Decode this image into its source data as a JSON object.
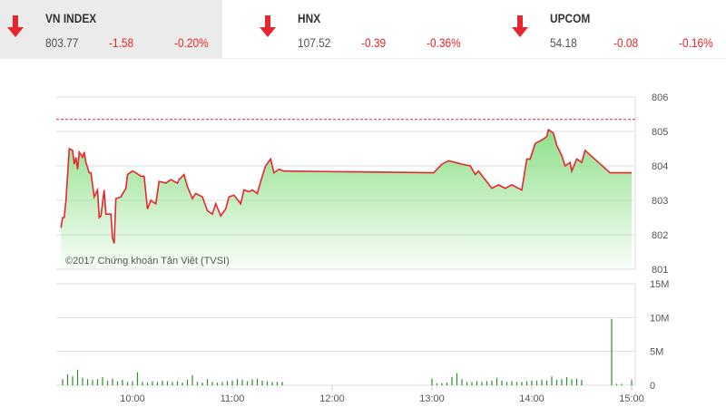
{
  "indices": [
    {
      "name": "VN INDEX",
      "price": "803.77",
      "change": "-1.58",
      "percent": "-0.20%",
      "direction": "down",
      "selected": true
    },
    {
      "name": "HNX",
      "price": "107.52",
      "change": "-0.39",
      "percent": "-0.36%",
      "direction": "down",
      "selected": false
    },
    {
      "name": "UPCOM",
      "price": "54.18",
      "change": "-0.08",
      "percent": "-0.16%",
      "direction": "down",
      "selected": false
    }
  ],
  "colors": {
    "down": "#e8262d",
    "line": "#e8262d",
    "area": "#8fe08a",
    "volume": "#2e8b2e"
  },
  "chart_data": [
    {
      "type": "area",
      "watermark": "©2017 Chứng khoán Tân Việt (TVSI)",
      "reference_value": 805.35,
      "ylim": [
        801,
        806
      ],
      "y_ticks": [
        "806",
        "805",
        "804",
        "803",
        "802",
        "801"
      ],
      "x_ticks": [
        "10:00",
        "11:00",
        "12:00",
        "13:00",
        "14:00",
        "15:00"
      ],
      "points": [
        [
          "09:17",
          802.2
        ],
        [
          "09:18",
          802.5
        ],
        [
          "09:19",
          802.5
        ],
        [
          "09:20",
          803.0
        ],
        [
          "09:22",
          804.5
        ],
        [
          "09:24",
          804.45
        ],
        [
          "09:25",
          804.05
        ],
        [
          "09:26",
          804.25
        ],
        [
          "09:27",
          803.9
        ],
        [
          "09:28",
          804.4
        ],
        [
          "09:30",
          804.25
        ],
        [
          "09:31",
          804.4
        ],
        [
          "09:32",
          804.1
        ],
        [
          "09:34",
          803.8
        ],
        [
          "09:35",
          803.8
        ],
        [
          "09:37",
          803.1
        ],
        [
          "09:39",
          803.3
        ],
        [
          "09:40",
          802.5
        ],
        [
          "09:41",
          802.55
        ],
        [
          "09:43",
          803.3
        ],
        [
          "09:44",
          802.6
        ],
        [
          "09:47",
          802.6
        ],
        [
          "09:48",
          801.9
        ],
        [
          "09:49",
          801.75
        ],
        [
          "09:50",
          803.05
        ],
        [
          "09:53",
          803.1
        ],
        [
          "09:56",
          803.35
        ],
        [
          "09:57",
          803.75
        ],
        [
          "10:00",
          803.85
        ],
        [
          "10:02",
          803.8
        ],
        [
          "10:05",
          803.7
        ],
        [
          "10:07",
          803.7
        ],
        [
          "10:09",
          802.75
        ],
        [
          "10:11",
          803.0
        ],
        [
          "10:14",
          802.9
        ],
        [
          "10:16",
          803.55
        ],
        [
          "10:20",
          803.5
        ],
        [
          "10:23",
          803.6
        ],
        [
          "10:27",
          803.5
        ],
        [
          "10:28",
          803.6
        ],
        [
          "10:31",
          803.75
        ],
        [
          "10:33",
          803.4
        ],
        [
          "10:36",
          803.05
        ],
        [
          "10:38",
          803.2
        ],
        [
          "10:42",
          803.1
        ],
        [
          "10:45",
          802.7
        ],
        [
          "10:48",
          802.6
        ],
        [
          "10:50",
          802.9
        ],
        [
          "10:53",
          802.55
        ],
        [
          "10:56",
          802.75
        ],
        [
          "10:58",
          803.1
        ],
        [
          "11:01",
          803.15
        ],
        [
          "11:05",
          802.9
        ],
        [
          "11:07",
          803.3
        ],
        [
          "11:10",
          803.25
        ],
        [
          "11:12",
          803.3
        ],
        [
          "11:15",
          803.2
        ],
        [
          "11:18",
          803.7
        ],
        [
          "11:20",
          804.0
        ],
        [
          "11:23",
          804.2
        ],
        [
          "11:25",
          803.8
        ],
        [
          "11:28",
          803.9
        ],
        [
          "11:31",
          803.85
        ],
        [
          "13:01",
          803.8
        ],
        [
          "13:03",
          803.9
        ],
        [
          "13:06",
          804.05
        ],
        [
          "13:10",
          804.15
        ],
        [
          "13:14",
          804.1
        ],
        [
          "13:18",
          804.05
        ],
        [
          "13:23",
          804.0
        ],
        [
          "13:26",
          803.75
        ],
        [
          "13:28",
          803.85
        ],
        [
          "13:32",
          803.6
        ],
        [
          "13:36",
          803.35
        ],
        [
          "13:40",
          803.45
        ],
        [
          "13:44",
          803.35
        ],
        [
          "13:48",
          803.45
        ],
        [
          "13:52",
          803.35
        ],
        [
          "13:54",
          803.3
        ],
        [
          "13:57",
          804.2
        ],
        [
          "13:59",
          804.2
        ],
        [
          "14:02",
          804.65
        ],
        [
          "14:06",
          804.75
        ],
        [
          "14:09",
          804.85
        ],
        [
          "14:10",
          805.05
        ],
        [
          "14:13",
          804.95
        ],
        [
          "14:15",
          804.6
        ],
        [
          "14:18",
          804.3
        ],
        [
          "14:20",
          804.0
        ],
        [
          "14:23",
          804.1
        ],
        [
          "14:24",
          803.85
        ],
        [
          "14:27",
          804.2
        ],
        [
          "14:30",
          804.1
        ],
        [
          "14:32",
          804.45
        ],
        [
          "14:47",
          803.8
        ],
        [
          "15:00",
          803.8
        ]
      ]
    },
    {
      "type": "bar",
      "ylim": [
        0,
        15
      ],
      "y_ticks": [
        "15M",
        "10M",
        "5M",
        "0"
      ],
      "x_ticks": [
        "10:00",
        "11:00",
        "12:00",
        "13:00",
        "14:00",
        "15:00"
      ],
      "volumes_millions": [
        [
          "09:18",
          0.9
        ],
        [
          "09:21",
          1.6
        ],
        [
          "09:24",
          1.3
        ],
        [
          "09:27",
          2.3
        ],
        [
          "09:30",
          1.1
        ],
        [
          "09:33",
          0.9
        ],
        [
          "09:36",
          0.8
        ],
        [
          "09:39",
          0.9
        ],
        [
          "09:42",
          1.2
        ],
        [
          "09:45",
          0.7
        ],
        [
          "09:48",
          1.0
        ],
        [
          "09:51",
          0.6
        ],
        [
          "09:54",
          0.8
        ],
        [
          "09:57",
          0.5
        ],
        [
          "10:00",
          0.6
        ],
        [
          "10:03",
          1.9
        ],
        [
          "10:06",
          0.5
        ],
        [
          "10:09",
          0.4
        ],
        [
          "10:12",
          0.6
        ],
        [
          "10:15",
          0.5
        ],
        [
          "10:18",
          0.7
        ],
        [
          "10:21",
          0.6
        ],
        [
          "10:24",
          0.5
        ],
        [
          "10:27",
          0.6
        ],
        [
          "10:30",
          0.4
        ],
        [
          "10:33",
          0.8
        ],
        [
          "10:36",
          1.5
        ],
        [
          "10:39",
          0.5
        ],
        [
          "10:42",
          0.4
        ],
        [
          "10:45",
          0.9
        ],
        [
          "10:48",
          0.5
        ],
        [
          "10:51",
          0.4
        ],
        [
          "10:54",
          0.5
        ],
        [
          "10:57",
          0.6
        ],
        [
          "11:00",
          0.7
        ],
        [
          "11:03",
          0.9
        ],
        [
          "11:06",
          0.8
        ],
        [
          "11:09",
          0.6
        ],
        [
          "11:12",
          0.9
        ],
        [
          "11:15",
          1.0
        ],
        [
          "11:18",
          0.7
        ],
        [
          "11:21",
          0.6
        ],
        [
          "11:24",
          0.5
        ],
        [
          "11:27",
          0.5
        ],
        [
          "11:30",
          0.5
        ],
        [
          "13:00",
          1.0
        ],
        [
          "13:03",
          0.3
        ],
        [
          "13:06",
          0.3
        ],
        [
          "13:09",
          0.4
        ],
        [
          "13:12",
          1.2
        ],
        [
          "13:15",
          1.8
        ],
        [
          "13:18",
          0.9
        ],
        [
          "13:21",
          0.5
        ],
        [
          "13:24",
          0.5
        ],
        [
          "13:27",
          0.6
        ],
        [
          "13:30",
          0.5
        ],
        [
          "13:33",
          0.6
        ],
        [
          "13:36",
          0.7
        ],
        [
          "13:39",
          1.1
        ],
        [
          "13:42",
          0.7
        ],
        [
          "13:45",
          0.5
        ],
        [
          "13:48",
          0.6
        ],
        [
          "13:51",
          0.5
        ],
        [
          "13:54",
          0.5
        ],
        [
          "13:57",
          0.6
        ],
        [
          "14:00",
          0.7
        ],
        [
          "14:03",
          0.7
        ],
        [
          "14:06",
          0.8
        ],
        [
          "14:09",
          0.7
        ],
        [
          "14:12",
          1.3
        ],
        [
          "14:15",
          0.8
        ],
        [
          "14:18",
          0.9
        ],
        [
          "14:21",
          1.2
        ],
        [
          "14:24",
          0.9
        ],
        [
          "14:27",
          1.0
        ],
        [
          "14:30",
          0.8
        ],
        [
          "14:48",
          9.8
        ],
        [
          "14:51",
          0.2
        ],
        [
          "14:54",
          0.2
        ],
        [
          "15:00",
          0.8
        ]
      ]
    }
  ]
}
